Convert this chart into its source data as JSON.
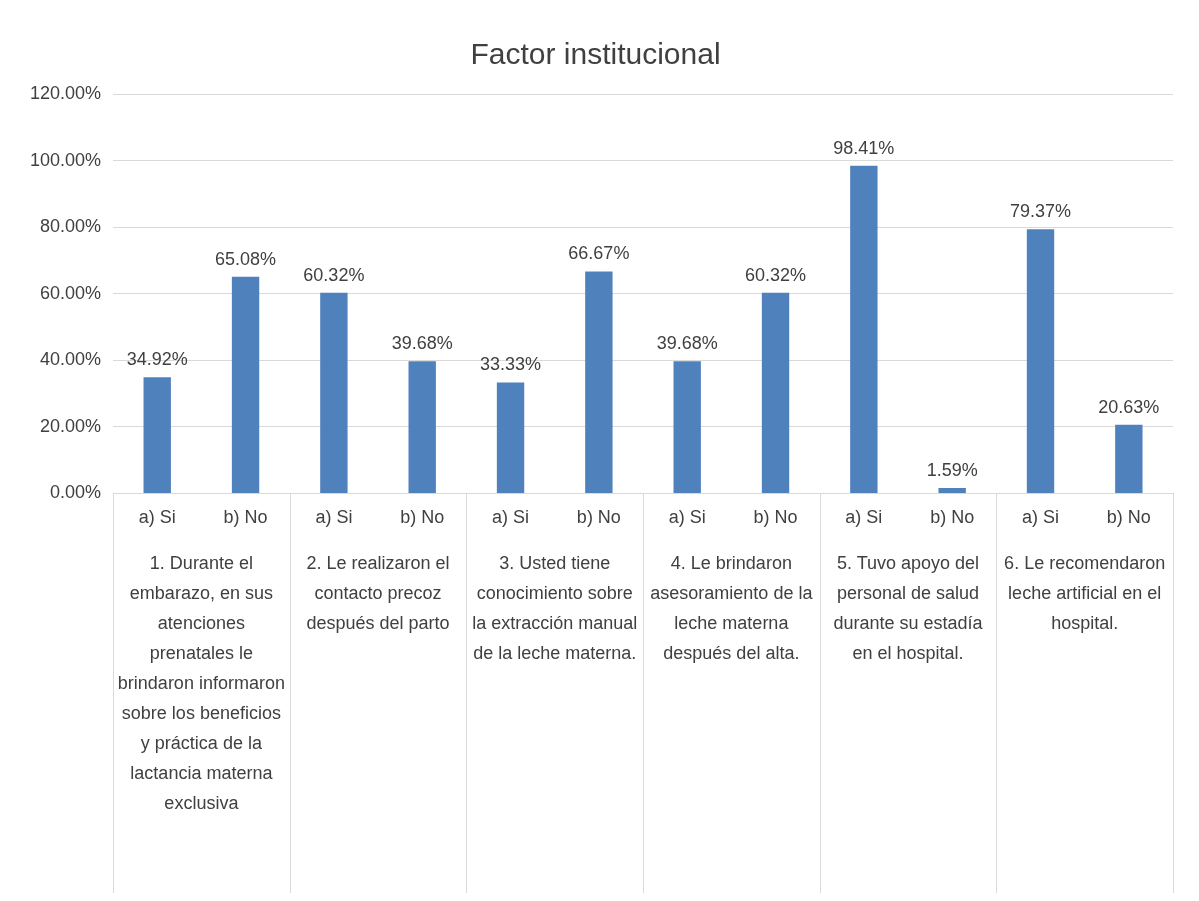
{
  "chart_data": {
    "type": "bar",
    "title": "Factor institucional",
    "categories": [
      "a) Si",
      "b) No",
      "a) Si",
      "b) No",
      "a) Si",
      "b) No",
      "a) Si",
      "b) No",
      "a) Si",
      "b) No",
      "a) Si",
      "b) No"
    ],
    "values": [
      34.92,
      65.08,
      60.32,
      39.68,
      33.33,
      66.67,
      39.68,
      60.32,
      98.41,
      1.59,
      79.37,
      20.63
    ],
    "value_labels": [
      "34.92%",
      "65.08%",
      "60.32%",
      "39.68%",
      "33.33%",
      "66.67%",
      "39.68%",
      "60.32%",
      "98.41%",
      "1.59%",
      "79.37%",
      "20.63%"
    ],
    "color": "#4f81bd",
    "ylim": [
      0,
      120
    ],
    "yticks": [
      {
        "value": 0,
        "label": "0.00%"
      },
      {
        "value": 20,
        "label": "20.00%"
      },
      {
        "value": 40,
        "label": "40.00%"
      },
      {
        "value": 60,
        "label": "60.00%"
      },
      {
        "value": 80,
        "label": "80.00%"
      },
      {
        "value": 100,
        "label": "100.00%"
      },
      {
        "value": 120,
        "label": "120.00%"
      }
    ],
    "grid": "y",
    "annotations": [
      "1. Durante el embarazo, en sus atenciones prenatales le brindaron informaron sobre los beneficios y práctica de la lactancia materna exclusiva",
      "2. Le realizaron el contacto precoz después del parto",
      "3. Usted tiene conocimiento sobre la extracción manual de la leche materna.",
      "4. Le brindaron asesoramiento de la leche materna después del alta.",
      "5. Tuvo apoyo del personal de salud durante su estadía en el hospital.",
      "6. Le recomendaron leche artificial en el hospital."
    ]
  }
}
